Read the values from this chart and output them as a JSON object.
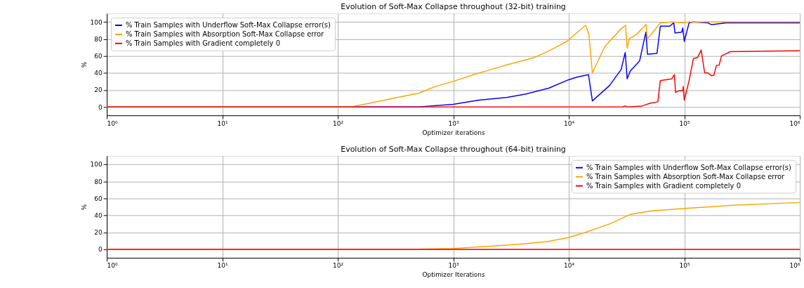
{
  "chart_data": [
    {
      "type": "line",
      "title": "Evolution of Soft-Max Collapse throughout (32-bit) training",
      "xlabel": "Optimizer iterations",
      "ylabel": "%",
      "log": "x",
      "grid": true,
      "legend": "top left",
      "xlim": [
        1,
        1000000
      ],
      "ylim": [
        -10,
        110
      ],
      "xticks": [
        {
          "value": 1,
          "label": "10⁰"
        },
        {
          "value": 10,
          "label": "10¹"
        },
        {
          "value": 100,
          "label": "10²"
        },
        {
          "value": 1000,
          "label": "10³"
        },
        {
          "value": 10000,
          "label": "10⁴"
        },
        {
          "value": 100000,
          "label": "10⁵"
        },
        {
          "value": 1000000,
          "label": "10⁶"
        }
      ],
      "yticks": [
        0,
        20,
        40,
        60,
        80,
        100
      ],
      "series": [
        {
          "name": "% Train Samples with Underflow Soft-Max Collapse error(s)",
          "color": "#0000ff",
          "x": [
            1,
            500,
            1000,
            1670,
            2900,
            4200,
            6700,
            10000,
            11800,
            14800,
            16000,
            22500,
            28400,
            30800,
            32000,
            34000,
            41000,
            46500,
            48000,
            58000,
            62000,
            75000,
            81000,
            83000,
            95000,
            97000,
            100000,
            110000,
            120000,
            160000,
            170000,
            180000,
            230000,
            1000000
          ],
          "values": [
            0,
            0,
            3,
            8,
            11,
            15,
            22,
            32,
            35,
            38,
            7,
            25,
            44,
            64,
            33,
            42,
            54,
            88,
            62,
            63,
            95,
            95,
            99,
            87,
            88,
            93,
            77,
            99,
            100,
            99,
            97,
            97,
            99,
            99
          ]
        },
        {
          "name": "% Train Samples with Absorption Soft-Max Collapse error",
          "color": "#ffa500",
          "x": [
            1,
            130,
            200,
            300,
            500,
            700,
            1000,
            1500,
            2000,
            3000,
            5000,
            7000,
            9600,
            14000,
            14900,
            16000,
            20500,
            28400,
            31000,
            32000,
            33300,
            39000,
            46700,
            47800,
            55000,
            62000,
            78000,
            98000,
            110000,
            1000000
          ],
          "values": [
            0,
            0,
            5,
            10,
            16,
            24,
            30,
            38,
            43,
            50,
            58,
            67,
            77,
            96,
            86,
            40,
            71,
            92,
            96,
            69,
            80,
            86,
            97,
            80,
            90,
            99,
            100,
            99,
            100,
            100
          ]
        },
        {
          "name": "% Train Samples with Gradient completely 0",
          "color": "#ff0000",
          "x": [
            1,
            29000,
            30800,
            32000,
            43000,
            50000,
            59000,
            62000,
            78000,
            82000,
            84000,
            90000,
            97000,
            98000,
            100000,
            110000,
            120000,
            130000,
            140000,
            150000,
            160000,
            170000,
            180000,
            190000,
            200000,
            210000,
            250000,
            1000000
          ],
          "values": [
            0,
            0,
            1,
            0,
            1,
            4,
            6,
            31,
            33,
            38,
            17,
            19,
            19,
            24,
            8,
            31,
            57,
            58,
            67,
            40,
            40,
            37,
            37,
            49,
            49,
            60,
            65,
            66
          ]
        }
      ]
    },
    {
      "type": "line",
      "title": "Evolution of Soft-Max Collapse throughout (64-bit) training",
      "xlabel": "Optimizer Iterations",
      "ylabel": "%",
      "log": "x",
      "grid": true,
      "legend": "top right",
      "xlim": [
        1,
        1000000
      ],
      "ylim": [
        -10,
        110
      ],
      "xticks": [
        {
          "value": 1,
          "label": "10⁰"
        },
        {
          "value": 10,
          "label": "10¹"
        },
        {
          "value": 100,
          "label": "10²"
        },
        {
          "value": 1000,
          "label": "10³"
        },
        {
          "value": 10000,
          "label": "10⁴"
        },
        {
          "value": 100000,
          "label": "10⁵"
        },
        {
          "value": 1000000,
          "label": "10⁶"
        }
      ],
      "yticks": [
        0,
        20,
        40,
        60,
        80,
        100
      ],
      "series": [
        {
          "name": "% Train Samples with Underflow Soft-Max Collapse error(s)",
          "color": "#0000ff"
        },
        {
          "name": "% Train Samples with Absorption Soft-Max Collapse error",
          "color": "#ffa500",
          "x": [
            1,
            414,
            1000,
            3070,
            6500,
            10000,
            13900,
            22700,
            34000,
            50000,
            100000,
            280000,
            960000,
            1000000
          ],
          "values": [
            0,
            0,
            1,
            5,
            9,
            14,
            20,
            30,
            41,
            45,
            48,
            52,
            55,
            55
          ]
        },
        {
          "name": "% Train Samples with Gradient completely 0",
          "color": "#ff0000",
          "x": [
            1,
            1000000
          ],
          "values": [
            0,
            0
          ]
        }
      ]
    }
  ]
}
